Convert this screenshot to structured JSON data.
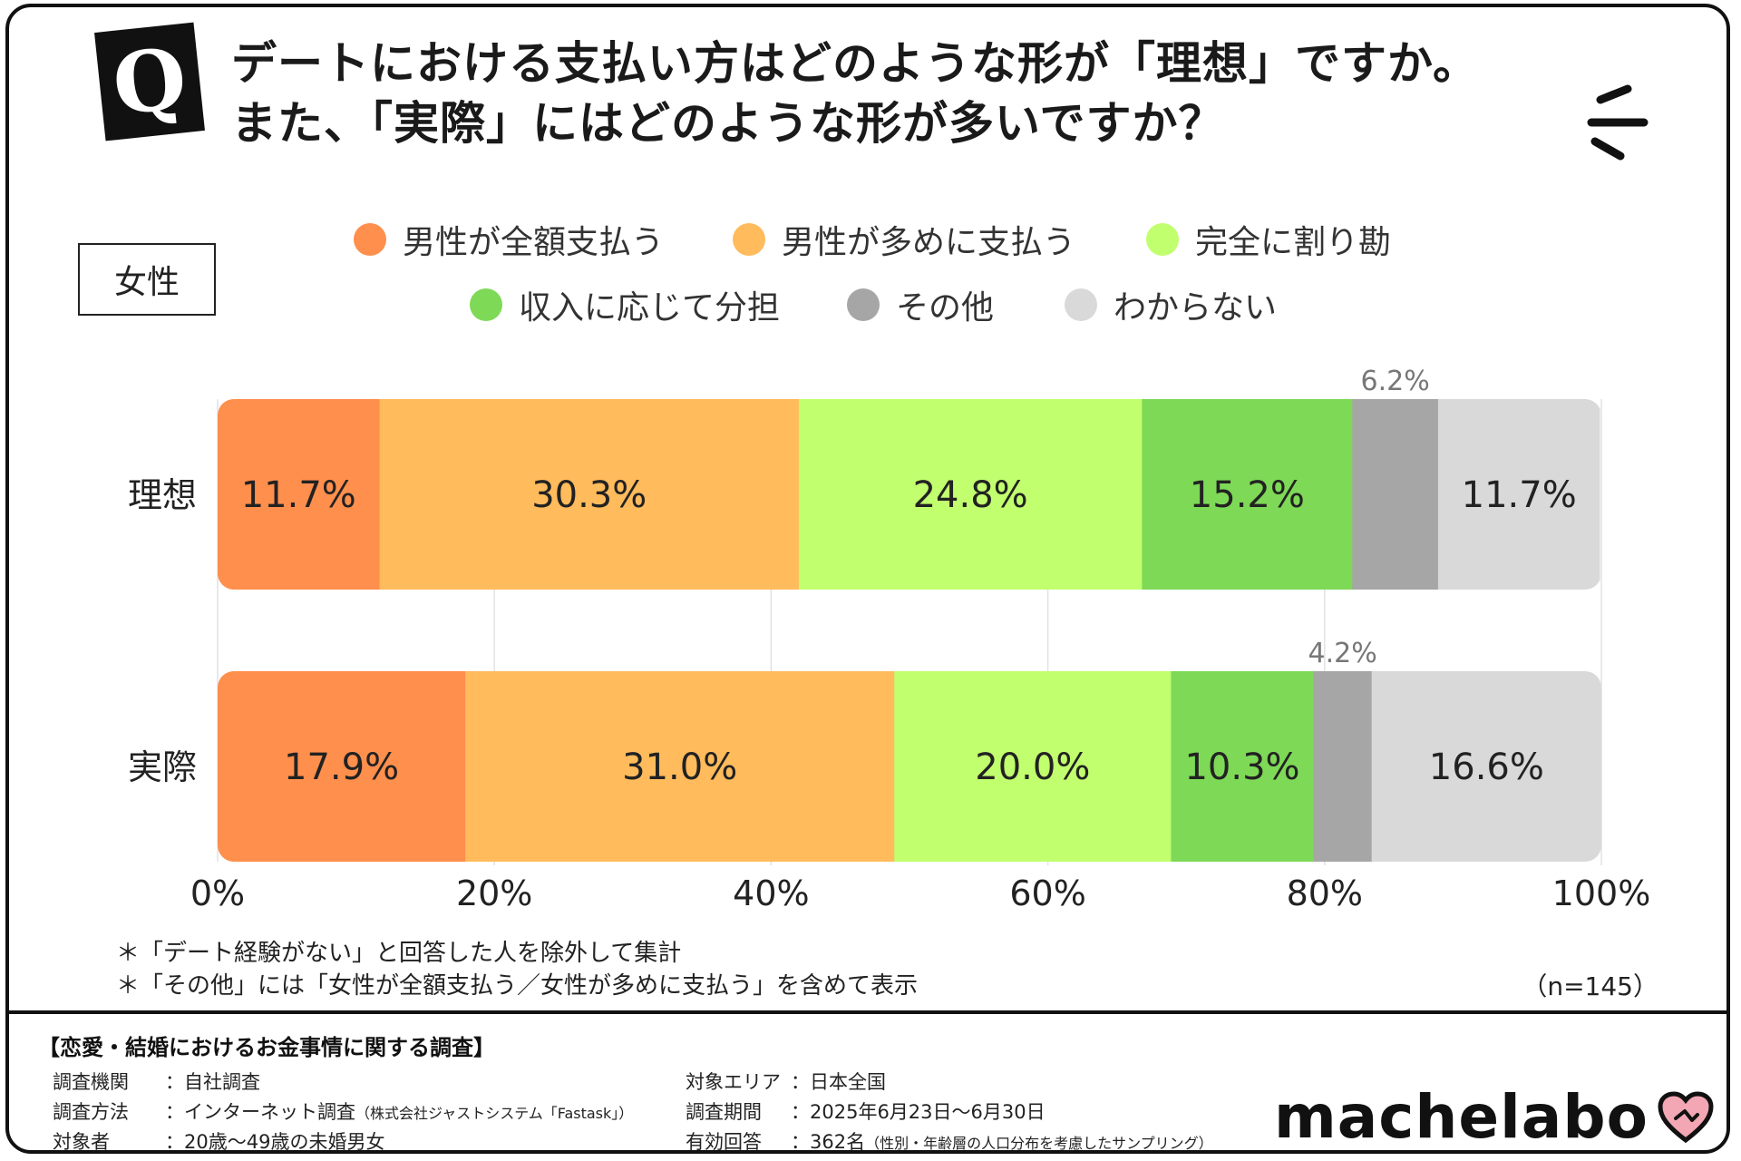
{
  "question": {
    "badge": "Q",
    "line1": "デートにおける支払い方はどのような形が「理想」ですか。",
    "line2": "また、「実際」にはどのような形が多いですか？"
  },
  "group_label": "女性",
  "legend": [
    {
      "label": "男性が全額支払う",
      "color": "#FF8F4D"
    },
    {
      "label": "男性が多めに支払う",
      "color": "#FFBB5C"
    },
    {
      "label": "完全に割り勘",
      "color": "#C1FF6E"
    },
    {
      "label": "収入に応じて分担",
      "color": "#7ED957"
    },
    {
      "label": "その他",
      "color": "#A6A6A6"
    },
    {
      "label": "わからない",
      "color": "#D9D9D9"
    }
  ],
  "chart_data": {
    "type": "bar",
    "orientation": "horizontal",
    "stacked": true,
    "categories": [
      "理想",
      "実際"
    ],
    "series": [
      {
        "name": "男性が全額支払う",
        "values": [
          11.7,
          17.9
        ],
        "labels": [
          "11.7%",
          "17.9%"
        ]
      },
      {
        "name": "男性が多めに支払う",
        "values": [
          30.3,
          31.0
        ],
        "labels": [
          "30.3%",
          "31.0%"
        ]
      },
      {
        "name": "完全に割り勘",
        "values": [
          24.8,
          20.0
        ],
        "labels": [
          "24.8%",
          "20.0%"
        ]
      },
      {
        "name": "収入に応じて分担",
        "values": [
          15.2,
          10.3
        ],
        "labels": [
          "15.2%",
          "10.3%"
        ]
      },
      {
        "name": "その他",
        "values": [
          6.2,
          4.2
        ],
        "labels": [
          "6.2%",
          "4.2%"
        ]
      },
      {
        "name": "わからない",
        "values": [
          11.7,
          16.6
        ],
        "labels": [
          "11.7%",
          "16.6%"
        ]
      }
    ],
    "xlim": [
      0,
      100
    ],
    "x_ticks": [
      0,
      20,
      40,
      60,
      80,
      100
    ],
    "x_tick_labels": [
      "0%",
      "20%",
      "40%",
      "60%",
      "80%",
      "100%"
    ],
    "grid": true,
    "legend_position": "top"
  },
  "notes": [
    "＊「デート経験がない」と回答した人を除外して集計",
    "＊「その他」には「女性が全額支払う／女性が多めに支払う」を含めて表示"
  ],
  "sample_size": "（n=145）",
  "footer": {
    "title": "【恋愛・結婚におけるお金事情に関する調査】",
    "left": [
      {
        "key": "調査機関",
        "value": "：自社調査",
        "sub": ""
      },
      {
        "key": "調査方法",
        "value": "：インターネット調査",
        "sub": "（株式会社ジャストシステム「Fastask」）"
      },
      {
        "key": "対象者",
        "value": "：20歳〜49歳の未婚男女",
        "sub": ""
      }
    ],
    "right": [
      {
        "key": "対象エリア",
        "value": "：日本全国",
        "sub": ""
      },
      {
        "key": "調査期間",
        "value": "：2025年6月23日〜6月30日",
        "sub": ""
      },
      {
        "key": "有効回答",
        "value": "：362名",
        "sub": "（性別・年齢層の人口分布を考慮したサンプリング）"
      }
    ],
    "logo": "machelabo"
  }
}
